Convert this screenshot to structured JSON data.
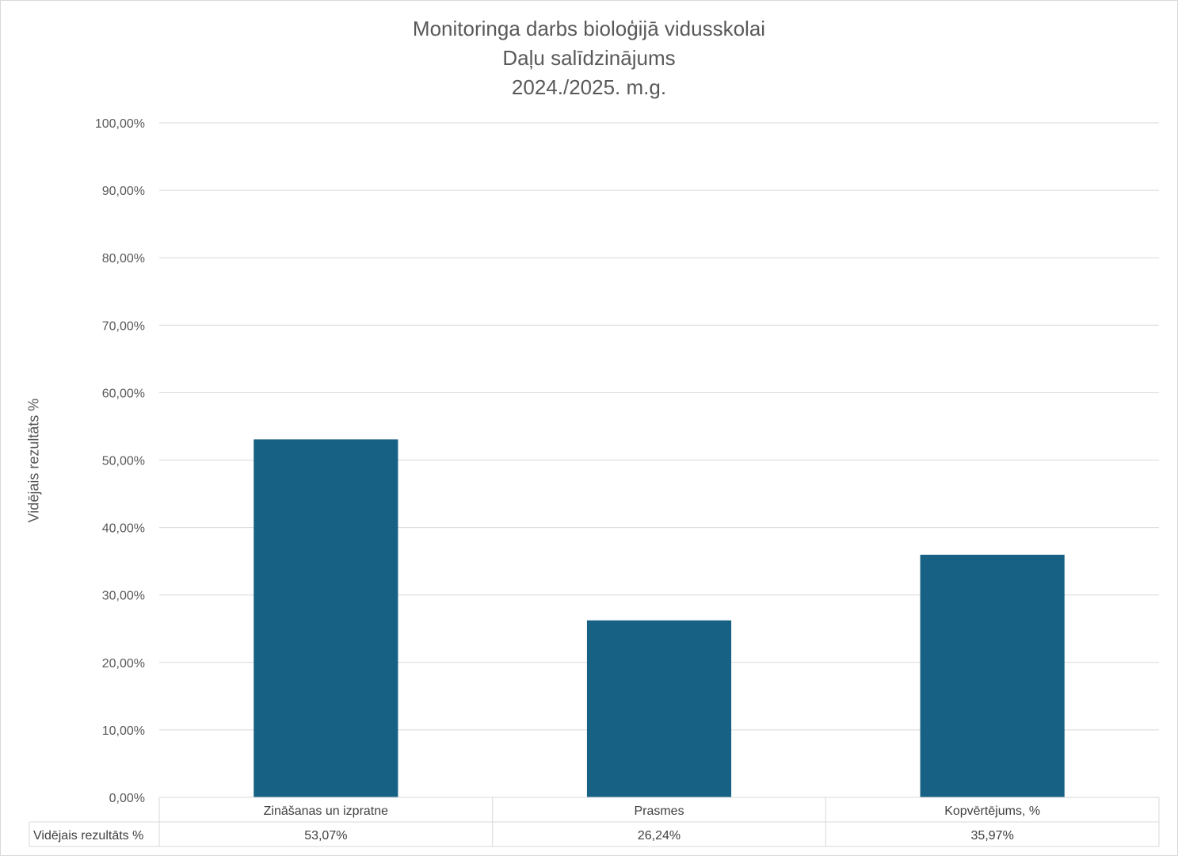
{
  "chart_data": {
    "type": "bar",
    "title_lines": [
      "Monitoringa darbs bioloģijā vidusskolai",
      "Daļu salīdzinājums",
      "2024./2025. m.g."
    ],
    "ylabel": "Vidējais rezultāts %",
    "categories": [
      "Zināšanas un izpratne",
      "Prasmes",
      "Kopvērtējums, %"
    ],
    "series": [
      {
        "name": "Vidējais rezultāts %",
        "values": [
          53.07,
          26.24,
          35.97
        ],
        "value_labels": [
          "53,07%",
          "26,24%",
          "35,97%"
        ],
        "color": "#176184"
      }
    ],
    "ylim": [
      0,
      100
    ],
    "ytick_step": 10,
    "ytick_labels": [
      "0,00%",
      "10,00%",
      "20,00%",
      "30,00%",
      "40,00%",
      "50,00%",
      "60,00%",
      "70,00%",
      "80,00%",
      "90,00%",
      "100,00%"
    ],
    "grid": true,
    "data_table": true,
    "gridline_color": "#d9d9d9"
  }
}
